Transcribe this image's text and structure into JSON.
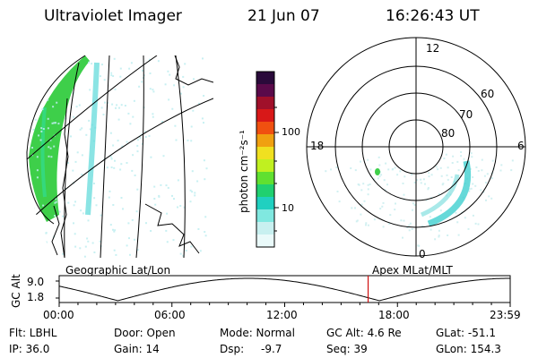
{
  "header": {
    "instrument": "Ultraviolet Imager",
    "date": "21 Jun 07",
    "time": "16:26:43 UT"
  },
  "colorbar": {
    "label": "photon cm⁻²s⁻¹",
    "ticks": [
      "100",
      "10"
    ],
    "colors": [
      "#2a0a3a",
      "#5a0a4a",
      "#a0102a",
      "#d81818",
      "#f05010",
      "#f0a010",
      "#f0e020",
      "#c0f020",
      "#60e030",
      "#20d070",
      "#20d0c0",
      "#80e8e0",
      "#c8f0f0",
      "#eafafa"
    ]
  },
  "polar": {
    "mlt_labels": {
      "top": "12",
      "left": "18",
      "right": "6",
      "bottom": "0"
    },
    "lat_labels": [
      "60",
      "70",
      "80"
    ]
  },
  "timeline": {
    "left_label": "Geographic Lat/Lon",
    "right_label": "Apex MLat/MLT",
    "axis_title": "GC Alt",
    "y_ticks": [
      "9.0",
      "1.8"
    ],
    "x_ticks": [
      "00:00",
      "06:00",
      "12:00",
      "18:00",
      "23:59"
    ],
    "current_time_fraction": 0.685,
    "marker_color": "#d01010"
  },
  "info": {
    "flt": "Flt: LBHL",
    "ip": "IP: 36.0",
    "door": "Door: Open",
    "gain": "Gain: 14",
    "mode": "Mode: Normal",
    "dsp_label": "Dsp:",
    "dsp_value": "-9.7",
    "gc_alt": "GC Alt: 4.6 Re",
    "seq": "Seq: 39",
    "glat": "GLat: -51.1",
    "glon": "GLon: 154.3"
  }
}
